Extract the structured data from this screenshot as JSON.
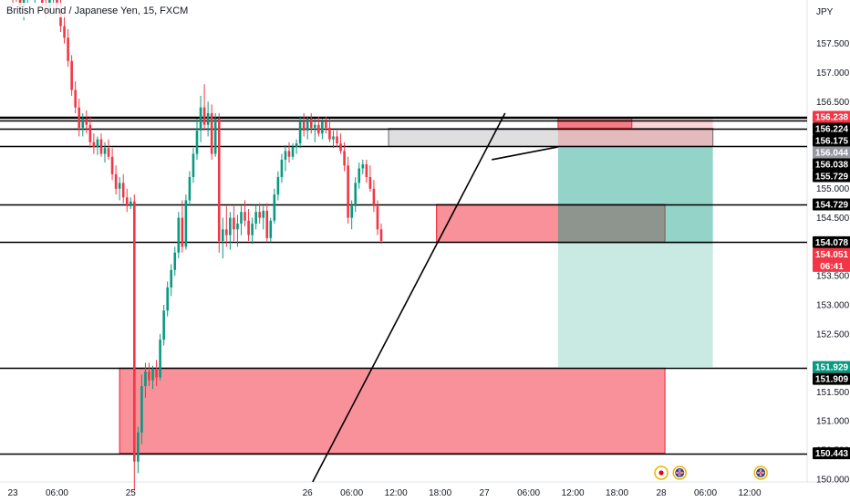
{
  "chart_data": {
    "type": "candlestick",
    "title": "British Pound / Japanese Yen, 15, FXCM",
    "currency": "JPY",
    "ylim": [
      149.95,
      158.25
    ],
    "y_ticks": [
      {
        "value": 157.5,
        "label": "157.500"
      },
      {
        "value": 157.0,
        "label": "157.000"
      },
      {
        "value": 156.5,
        "label": "156.500"
      },
      {
        "value": 155.5,
        "label": "155.500"
      },
      {
        "value": 155.0,
        "label": "155.000"
      },
      {
        "value": 154.5,
        "label": "154.500"
      },
      {
        "value": 153.5,
        "label": "153.500"
      },
      {
        "value": 153.0,
        "label": "153.000"
      },
      {
        "value": 152.5,
        "label": "152.500"
      },
      {
        "value": 151.5,
        "label": "151.500"
      },
      {
        "value": 151.0,
        "label": "151.000"
      },
      {
        "value": 150.5,
        "label": "150.500"
      },
      {
        "value": 150.0,
        "label": "150.000"
      }
    ],
    "x_ticks": [
      {
        "hour": 0,
        "label": "23"
      },
      {
        "hour": 6,
        "label": "06:00"
      },
      {
        "hour": 16,
        "label": "25"
      },
      {
        "hour": 40,
        "label": "26"
      },
      {
        "hour": 46,
        "label": "06:00"
      },
      {
        "hour": 52,
        "label": "12:00"
      },
      {
        "hour": 58,
        "label": "18:00"
      },
      {
        "hour": 64,
        "label": "27"
      },
      {
        "hour": 70,
        "label": "06:00"
      },
      {
        "hour": 76,
        "label": "12:00"
      },
      {
        "hour": 82,
        "label": "18:00"
      },
      {
        "hour": 88,
        "label": "28"
      },
      {
        "hour": 94,
        "label": "06:00"
      },
      {
        "hour": 100,
        "label": "12:00"
      }
    ],
    "horizontal_levels": [
      156.238,
      156.224,
      156.175,
      156.038,
      155.729,
      154.729,
      154.078,
      151.909,
      150.443
    ],
    "price_tags": [
      {
        "label": "156.238",
        "value": 156.238,
        "color": "#f23645"
      },
      {
        "label": "156.224",
        "value": 156.224,
        "color": "#000000"
      },
      {
        "label": "156.175",
        "value": 156.175,
        "color": "#000000"
      },
      {
        "label": "156.044",
        "value": 156.044,
        "color": "#9598a1"
      },
      {
        "label": "156.038",
        "value": 156.038,
        "color": "#000000"
      },
      {
        "label": "155.729",
        "value": 155.729,
        "color": "#000000"
      },
      {
        "label": "154.729",
        "value": 154.729,
        "color": "#000000"
      },
      {
        "label": "154.078",
        "value": 154.078,
        "color": "#000000"
      },
      {
        "label": "154.051",
        "value": 154.051,
        "color": "#f23645"
      },
      {
        "label": "151.929",
        "value": 151.929,
        "color": "#089981"
      },
      {
        "label": "151.909",
        "value": 151.909,
        "color": "#000000"
      },
      {
        "label": "150.443",
        "value": 150.443,
        "color": "#000000"
      }
    ],
    "countdown": "06:41",
    "zones": [
      {
        "kind": "supply",
        "x0": 14.5,
        "x1": 88.5,
        "y0": 150.443,
        "y1": 151.909,
        "fill": "#f23645"
      },
      {
        "kind": "supply",
        "x0": 57.5,
        "x1": 88.5,
        "y0": 154.078,
        "y1": 154.729,
        "fill": "#f23645"
      },
      {
        "kind": "range",
        "x0": 51.0,
        "x1": 95.0,
        "y0": 155.729,
        "y1": 156.038,
        "fill": "#c4c4c4"
      },
      {
        "kind": "supply",
        "x0": 74.0,
        "x1": 84.0,
        "y0": 156.044,
        "y1": 156.224,
        "fill": "#f23645"
      }
    ],
    "short_position": {
      "entry": 155.729,
      "stop": 156.224,
      "target": 151.929,
      "x0": 74.0,
      "x1": 95.0
    },
    "trend_lines": [
      {
        "x0": 40.7,
        "y0": 149.95,
        "x1": 66.8,
        "y1": 156.3
      },
      {
        "x0": 65.0,
        "y0": 155.5,
        "x1": 74.0,
        "y1": 155.72
      }
    ],
    "events": [
      {
        "hour": 88.0,
        "flag": "jp"
      },
      {
        "hour": 90.5,
        "flag": "gb"
      },
      {
        "hour": 101.5,
        "flag": "gb"
      }
    ],
    "series": [
      [
        0.0,
        158.41,
        158.55,
        158.15,
        158.35
      ],
      [
        0.5,
        158.35,
        158.52,
        158.22,
        158.28
      ],
      [
        1.0,
        158.28,
        158.45,
        158.05,
        158.12
      ],
      [
        1.5,
        158.12,
        158.38,
        157.9,
        158.3
      ],
      [
        2.0,
        158.3,
        158.5,
        158.18,
        158.42
      ],
      [
        2.5,
        158.42,
        158.6,
        158.3,
        158.38
      ],
      [
        3.0,
        158.38,
        158.62,
        158.2,
        158.55
      ],
      [
        3.5,
        158.55,
        158.7,
        158.3,
        158.4
      ],
      [
        4.0,
        158.4,
        158.58,
        158.15,
        158.2
      ],
      [
        4.5,
        158.2,
        158.4,
        157.95,
        158.05
      ],
      [
        5.0,
        158.05,
        158.35,
        157.98,
        158.25
      ],
      [
        5.5,
        158.25,
        158.45,
        158.1,
        158.32
      ],
      [
        6.0,
        158.32,
        158.5,
        158.05,
        158.1
      ],
      [
        6.5,
        158.1,
        158.25,
        157.7,
        157.8
      ],
      [
        7.0,
        157.8,
        158.1,
        157.5,
        157.6
      ],
      [
        7.5,
        157.6,
        157.75,
        157.1,
        157.2
      ],
      [
        8.0,
        157.2,
        157.3,
        156.6,
        156.7
      ],
      [
        8.5,
        156.7,
        156.85,
        156.3,
        156.4
      ],
      [
        9.0,
        156.4,
        156.55,
        155.9,
        156.05
      ],
      [
        9.5,
        156.05,
        156.3,
        155.9,
        156.2
      ],
      [
        10.0,
        156.2,
        156.35,
        155.95,
        156.1
      ],
      [
        10.5,
        156.1,
        156.25,
        155.7,
        155.8
      ],
      [
        11.0,
        155.8,
        155.95,
        155.6,
        155.72
      ],
      [
        11.5,
        155.72,
        155.9,
        155.58,
        155.85
      ],
      [
        12.0,
        155.85,
        155.95,
        155.55,
        155.6
      ],
      [
        12.5,
        155.6,
        155.8,
        155.45,
        155.7
      ],
      [
        13.0,
        155.7,
        155.85,
        155.5,
        155.55
      ],
      [
        13.5,
        155.55,
        155.7,
        155.15,
        155.25
      ],
      [
        14.0,
        155.25,
        155.4,
        154.9,
        155.0
      ],
      [
        14.5,
        155.0,
        155.2,
        154.8,
        155.1
      ],
      [
        15.0,
        155.1,
        155.25,
        154.75,
        154.85
      ],
      [
        15.5,
        154.85,
        155.0,
        154.6,
        154.7
      ],
      [
        16.0,
        154.7,
        154.85,
        154.65,
        154.78
      ],
      [
        16.5,
        154.78,
        154.9,
        149.8,
        150.3
      ],
      [
        17.0,
        150.3,
        150.9,
        150.1,
        150.8
      ],
      [
        17.5,
        150.8,
        151.8,
        150.6,
        151.6
      ],
      [
        18.0,
        151.6,
        152.0,
        151.4,
        151.85
      ],
      [
        18.5,
        151.85,
        152.0,
        151.6,
        151.7
      ],
      [
        19.0,
        151.7,
        151.95,
        151.55,
        151.9
      ],
      [
        19.5,
        151.9,
        152.05,
        151.6,
        151.75
      ],
      [
        20.0,
        151.75,
        152.5,
        151.7,
        152.4
      ],
      [
        20.5,
        152.4,
        153.0,
        152.3,
        152.9
      ],
      [
        21.0,
        152.9,
        153.4,
        152.8,
        153.3
      ],
      [
        21.5,
        153.3,
        153.7,
        153.15,
        153.6
      ],
      [
        22.0,
        153.6,
        154.0,
        153.5,
        153.9
      ],
      [
        22.5,
        153.9,
        154.6,
        153.8,
        154.5
      ],
      [
        23.0,
        154.5,
        154.8,
        153.9,
        154.0
      ],
      [
        23.5,
        154.0,
        154.9,
        153.95,
        154.8
      ],
      [
        24.0,
        154.8,
        155.3,
        154.7,
        155.2
      ],
      [
        24.5,
        155.2,
        155.7,
        155.1,
        155.6
      ],
      [
        25.0,
        155.6,
        156.2,
        155.5,
        156.0
      ],
      [
        25.5,
        156.0,
        156.6,
        155.8,
        156.4
      ],
      [
        26.0,
        156.4,
        156.8,
        156.0,
        156.1
      ],
      [
        26.5,
        156.1,
        156.5,
        155.9,
        156.3
      ],
      [
        27.0,
        156.3,
        156.45,
        155.5,
        155.6
      ],
      [
        27.5,
        155.6,
        156.3,
        155.55,
        156.2
      ],
      [
        28.0,
        156.2,
        156.3,
        153.9,
        154.1
      ],
      [
        28.5,
        154.1,
        154.5,
        153.8,
        154.3
      ],
      [
        29.0,
        154.3,
        154.7,
        154.0,
        154.2
      ],
      [
        29.5,
        154.2,
        154.6,
        153.95,
        154.5
      ],
      [
        30.0,
        154.5,
        154.7,
        154.1,
        154.3
      ],
      [
        30.5,
        154.3,
        154.55,
        154.0,
        154.4
      ],
      [
        31.0,
        154.4,
        154.7,
        154.2,
        154.6
      ],
      [
        31.5,
        154.6,
        154.8,
        154.35,
        154.45
      ],
      [
        32.0,
        154.45,
        154.65,
        154.1,
        154.2
      ],
      [
        32.5,
        154.2,
        154.5,
        154.05,
        154.4
      ],
      [
        33.0,
        154.4,
        154.72,
        154.3,
        154.6
      ],
      [
        33.5,
        154.6,
        154.75,
        154.4,
        154.5
      ],
      [
        34.0,
        154.5,
        154.7,
        154.3,
        154.62
      ],
      [
        34.5,
        154.62,
        154.75,
        154.08,
        154.15
      ],
      [
        35.0,
        154.15,
        154.5,
        154.08,
        154.45
      ],
      [
        35.5,
        154.45,
        155.0,
        154.4,
        154.9
      ],
      [
        36.0,
        154.9,
        155.3,
        154.8,
        155.2
      ],
      [
        36.5,
        155.2,
        155.6,
        155.1,
        155.5
      ],
      [
        37.0,
        155.5,
        155.75,
        155.3,
        155.65
      ],
      [
        37.5,
        155.65,
        155.8,
        155.45,
        155.55
      ],
      [
        38.0,
        155.55,
        155.78,
        155.5,
        155.72
      ],
      [
        38.5,
        155.72,
        155.85,
        155.6,
        155.78
      ],
      [
        39.0,
        155.78,
        156.25,
        155.7,
        156.15
      ],
      [
        39.5,
        156.15,
        156.3,
        155.9,
        156.0
      ],
      [
        40.0,
        156.0,
        156.25,
        155.85,
        156.2
      ],
      [
        40.5,
        156.2,
        156.3,
        155.95,
        156.05
      ],
      [
        41.0,
        156.05,
        156.2,
        155.8,
        156.1
      ],
      [
        41.5,
        156.1,
        156.24,
        155.9,
        155.95
      ],
      [
        42.0,
        155.95,
        156.2,
        155.85,
        156.15
      ],
      [
        42.5,
        156.15,
        156.24,
        155.95,
        156.05
      ],
      [
        43.0,
        156.05,
        156.2,
        155.8,
        155.85
      ],
      [
        43.5,
        155.85,
        156.0,
        155.7,
        155.9
      ],
      [
        44.0,
        155.9,
        156.0,
        155.72,
        155.78
      ],
      [
        44.5,
        155.78,
        155.95,
        155.6,
        155.65
      ],
      [
        45.0,
        155.65,
        155.8,
        155.3,
        155.4
      ],
      [
        45.5,
        155.4,
        155.55,
        154.4,
        154.5
      ],
      [
        46.0,
        154.5,
        154.8,
        154.3,
        154.7
      ],
      [
        46.5,
        154.7,
        155.2,
        154.6,
        155.1
      ],
      [
        47.0,
        155.1,
        155.45,
        155.0,
        155.35
      ],
      [
        47.5,
        155.35,
        155.5,
        155.25,
        155.42
      ],
      [
        48.0,
        155.42,
        155.5,
        155.1,
        155.2
      ],
      [
        48.5,
        155.2,
        155.4,
        154.95,
        155.0
      ],
      [
        49.0,
        155.0,
        155.15,
        154.6,
        154.7
      ],
      [
        49.5,
        154.7,
        154.8,
        154.2,
        154.3
      ],
      [
        50.0,
        154.3,
        154.4,
        154.05,
        154.1
      ]
    ]
  }
}
